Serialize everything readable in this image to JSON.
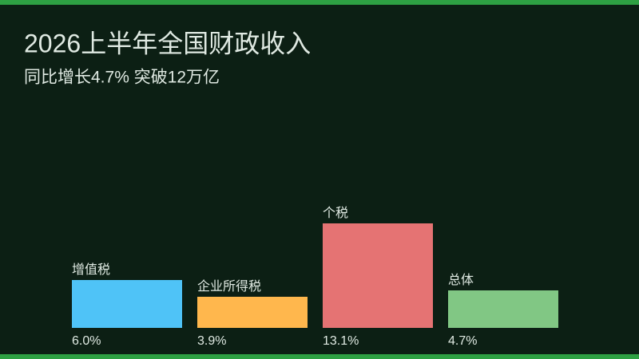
{
  "chart_data": {
    "type": "bar",
    "title": "2026上半年全国财政收入",
    "subtitle": "同比增长4.7% 突破12万亿",
    "categories": [
      "增值税",
      "企业所得税",
      "个税",
      "总体"
    ],
    "values": [
      6.0,
      3.9,
      13.1,
      4.7
    ],
    "value_labels": [
      "6.0%",
      "3.9%",
      "13.1%",
      "4.7%"
    ],
    "colors": [
      "#4fc3f7",
      "#ffb74d",
      "#e57373",
      "#81c784"
    ]
  }
}
